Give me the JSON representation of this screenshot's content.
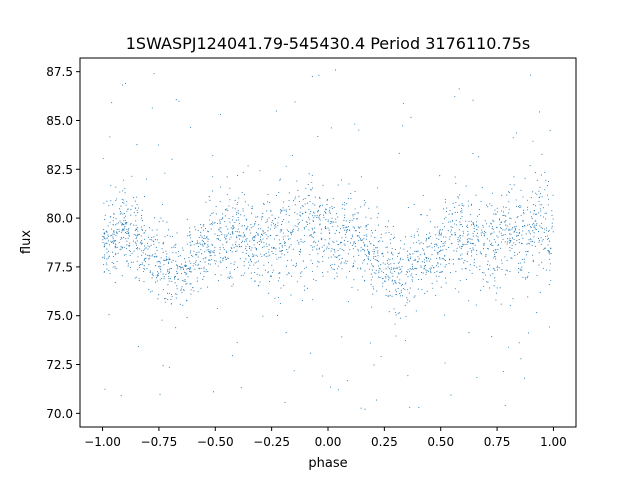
{
  "chart_data": {
    "type": "scatter",
    "title": "1SWASPJ124041.79-545430.4 Period 3176110.75s",
    "xlabel": "phase",
    "ylabel": "flux",
    "xlim": [
      -1.1,
      1.1
    ],
    "ylim": [
      69.3,
      88.2
    ],
    "xticks": [
      "−1.00",
      "−0.75",
      "−0.50",
      "−0.25",
      "0.00",
      "0.25",
      "0.50",
      "0.75",
      "1.00"
    ],
    "yticks": [
      "70.0",
      "72.5",
      "75.0",
      "77.5",
      "80.0",
      "82.5",
      "85.0",
      "87.5"
    ],
    "grid": false,
    "legend": "none",
    "marker_color": "#1f77b4",
    "light_curve": {
      "phase": [
        -1.0,
        -0.95,
        -0.9,
        -0.85,
        -0.8,
        -0.75,
        -0.7,
        -0.65,
        -0.6,
        -0.55,
        -0.5,
        -0.45,
        -0.4,
        -0.35,
        -0.3,
        -0.25,
        -0.2,
        -0.15,
        -0.1,
        -0.05,
        0.0,
        0.05,
        0.1,
        0.15,
        0.2,
        0.25,
        0.3,
        0.35,
        0.4,
        0.45,
        0.5,
        0.55,
        0.6,
        0.65,
        0.7,
        0.75,
        0.8,
        0.85,
        0.9,
        0.95,
        1.0
      ],
      "flux_center": [
        78.3,
        79.2,
        79.6,
        79.2,
        78.3,
        77.6,
        77.1,
        77.3,
        77.8,
        78.4,
        78.8,
        79.1,
        79.2,
        78.9,
        78.6,
        78.7,
        79.0,
        79.1,
        79.4,
        79.7,
        79.2,
        78.8,
        79.2,
        79.1,
        78.1,
        77.6,
        77.3,
        77.5,
        77.9,
        78.1,
        78.2,
        78.9,
        79.1,
        78.9,
        78.7,
        78.6,
        79.0,
        79.2,
        79.4,
        79.8,
        79.0
      ],
      "flux_spread": [
        1.5,
        1.8,
        2.0,
        2.0,
        1.9,
        1.8,
        1.8,
        1.8,
        1.8,
        1.8,
        1.9,
        2.0,
        2.0,
        2.0,
        2.1,
        2.3,
        2.4,
        2.5,
        2.3,
        2.2,
        2.0,
        1.9,
        2.0,
        2.0,
        1.9,
        1.8,
        1.8,
        1.8,
        1.8,
        1.8,
        1.9,
        2.0,
        2.1,
        2.1,
        2.1,
        2.3,
        2.4,
        2.5,
        2.5,
        2.3,
        2.0
      ],
      "point_count": 2600,
      "outlier_fraction": 0.04,
      "outlier_flux_range": [
        70.0,
        87.8
      ]
    }
  }
}
